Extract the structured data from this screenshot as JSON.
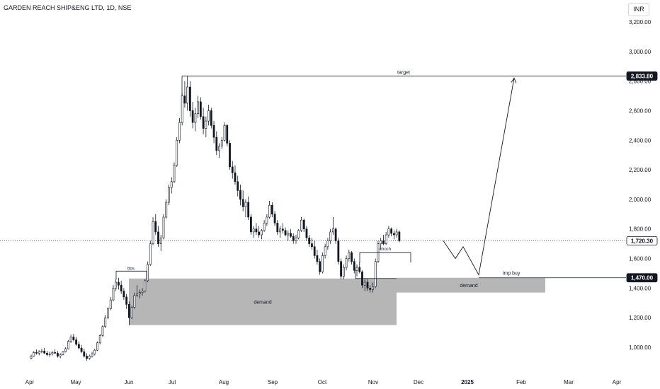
{
  "header": {
    "symbol_title": "GARDEN REACH SHIP&ENG LTD, 1D, NSE",
    "currency": "INR"
  },
  "chart_data": {
    "type": "candlestick",
    "title": "GARDEN REACH SHIP&ENG LTD, 1D, NSE",
    "x_axis_ticks": [
      "Apr",
      "May",
      "Jun",
      "Jul",
      "Aug",
      "Sep",
      "Oct",
      "Nov",
      "Dec",
      "2025",
      "Feb",
      "Mar",
      "Apr"
    ],
    "y_axis_ticks": [
      "1,000.00",
      "1,200.00",
      "1,400.00",
      "1,600.00",
      "1,800.00",
      "2,000.00",
      "2,200.00",
      "2,400.00",
      "2,600.00",
      "2,800.00",
      "3,000.00",
      "3,200.00"
    ],
    "ylim": [
      910,
      3250
    ],
    "price_labels": [
      {
        "value": 2833.8,
        "text": "2,833.80",
        "style": "dark"
      },
      {
        "value": 1720.3,
        "text": "1,720.30",
        "style": "outline"
      },
      {
        "value": 1470.0,
        "text": "1,470.00",
        "style": "dark"
      }
    ],
    "current_price": 1720.3,
    "annotations": [
      {
        "name": "target-line",
        "type": "hline",
        "y": 2833.8,
        "label": "target"
      },
      {
        "name": "imp-buy-line",
        "type": "hline",
        "y": 1470.0,
        "label": "Imp buy"
      },
      {
        "name": "demand-zone-1",
        "type": "box",
        "y_low": 1150,
        "y_high": 1465,
        "label": "demand"
      },
      {
        "name": "demand-zone-2",
        "type": "box",
        "y_low": 1370,
        "y_high": 1470,
        "label": "demand"
      },
      {
        "name": "bos-mark",
        "type": "bracket",
        "y": 1515,
        "label": "bos"
      },
      {
        "name": "choch-mark",
        "type": "bracket",
        "y": 1640,
        "label": "choch"
      },
      {
        "name": "x-mark",
        "type": "text",
        "y": 1440,
        "label": "x"
      }
    ],
    "projection": [
      1720,
      1600,
      1680,
      1490,
      2820
    ],
    "series": [
      {
        "name": "price",
        "ohlc": [
          [
            924,
            950,
            918,
            940
          ],
          [
            940,
            975,
            935,
            965
          ],
          [
            965,
            985,
            950,
            960
          ],
          [
            960,
            980,
            945,
            970
          ],
          [
            970,
            990,
            960,
            975
          ],
          [
            975,
            995,
            955,
            960
          ],
          [
            960,
            975,
            940,
            950
          ],
          [
            950,
            970,
            935,
            955
          ],
          [
            955,
            975,
            945,
            965
          ],
          [
            965,
            985,
            955,
            960
          ],
          [
            960,
            975,
            930,
            940
          ],
          [
            940,
            960,
            925,
            950
          ],
          [
            950,
            975,
            945,
            970
          ],
          [
            970,
            1000,
            965,
            990
          ],
          [
            990,
            1050,
            985,
            1040
          ],
          [
            1040,
            1085,
            1030,
            1070
          ],
          [
            1070,
            1090,
            1040,
            1050
          ],
          [
            1050,
            1070,
            1010,
            1020
          ],
          [
            1020,
            1040,
            985,
            995
          ],
          [
            995,
            1015,
            960,
            970
          ],
          [
            970,
            990,
            930,
            940
          ],
          [
            940,
            960,
            910,
            925
          ],
          [
            925,
            950,
            915,
            940
          ],
          [
            940,
            970,
            930,
            955
          ],
          [
            955,
            990,
            945,
            980
          ],
          [
            980,
            1040,
            975,
            1030
          ],
          [
            1030,
            1090,
            1020,
            1080
          ],
          [
            1080,
            1150,
            1070,
            1140
          ],
          [
            1140,
            1220,
            1130,
            1200
          ],
          [
            1200,
            1270,
            1190,
            1260
          ],
          [
            1260,
            1340,
            1250,
            1320
          ],
          [
            1320,
            1420,
            1310,
            1400
          ],
          [
            1400,
            1460,
            1380,
            1440
          ],
          [
            1440,
            1470,
            1390,
            1420
          ],
          [
            1420,
            1450,
            1360,
            1380
          ],
          [
            1380,
            1400,
            1320,
            1340
          ],
          [
            1340,
            1360,
            1260,
            1290
          ],
          [
            1290,
            1310,
            1150,
            1200
          ],
          [
            1200,
            1280,
            1190,
            1270
          ],
          [
            1270,
            1370,
            1260,
            1350
          ],
          [
            1350,
            1420,
            1340,
            1360
          ],
          [
            1360,
            1390,
            1330,
            1370
          ],
          [
            1370,
            1400,
            1350,
            1380
          ],
          [
            1380,
            1460,
            1370,
            1450
          ],
          [
            1450,
            1580,
            1440,
            1560
          ],
          [
            1560,
            1720,
            1550,
            1700
          ],
          [
            1700,
            1880,
            1690,
            1850
          ],
          [
            1850,
            1900,
            1760,
            1780
          ],
          [
            1780,
            1820,
            1680,
            1700
          ],
          [
            1700,
            1760,
            1650,
            1740
          ],
          [
            1740,
            1900,
            1730,
            1880
          ],
          [
            1880,
            2000,
            1870,
            1980
          ],
          [
            1980,
            2100,
            1960,
            2080
          ],
          [
            2080,
            2150,
            2040,
            2120
          ],
          [
            2120,
            2250,
            2110,
            2230
          ],
          [
            2230,
            2420,
            2220,
            2400
          ],
          [
            2400,
            2550,
            2380,
            2520
          ],
          [
            2520,
            2720,
            2500,
            2700
          ],
          [
            2700,
            2800,
            2620,
            2650
          ],
          [
            2650,
            2834,
            2600,
            2760
          ],
          [
            2760,
            2800,
            2560,
            2600
          ],
          [
            2600,
            2660,
            2480,
            2520
          ],
          [
            2520,
            2620,
            2460,
            2580
          ],
          [
            2580,
            2700,
            2550,
            2660
          ],
          [
            2660,
            2690,
            2540,
            2560
          ],
          [
            2560,
            2620,
            2440,
            2480
          ],
          [
            2480,
            2560,
            2420,
            2530
          ],
          [
            2530,
            2640,
            2500,
            2600
          ],
          [
            2600,
            2620,
            2480,
            2500
          ],
          [
            2500,
            2530,
            2380,
            2420
          ],
          [
            2420,
            2460,
            2300,
            2330
          ],
          [
            2330,
            2380,
            2280,
            2360
          ],
          [
            2360,
            2420,
            2340,
            2400
          ],
          [
            2400,
            2520,
            2390,
            2500
          ],
          [
            2500,
            2510,
            2360,
            2380
          ],
          [
            2380,
            2400,
            2200,
            2220
          ],
          [
            2220,
            2260,
            2140,
            2180
          ],
          [
            2180,
            2230,
            2100,
            2120
          ],
          [
            2120,
            2160,
            2020,
            2060
          ],
          [
            2060,
            2100,
            1960,
            2000
          ],
          [
            2000,
            2060,
            1920,
            1950
          ],
          [
            1950,
            2000,
            1880,
            1980
          ],
          [
            1980,
            2020,
            1860,
            1880
          ],
          [
            1880,
            1900,
            1760,
            1780
          ],
          [
            1780,
            1820,
            1740,
            1800
          ],
          [
            1800,
            1840,
            1760,
            1780
          ],
          [
            1780,
            1820,
            1740,
            1760
          ],
          [
            1760,
            1800,
            1730,
            1790
          ],
          [
            1790,
            1860,
            1780,
            1840
          ],
          [
            1840,
            1900,
            1820,
            1880
          ],
          [
            1880,
            1990,
            1870,
            1960
          ],
          [
            1960,
            1980,
            1880,
            1900
          ],
          [
            1900,
            1920,
            1820,
            1840
          ],
          [
            1840,
            1860,
            1760,
            1780
          ],
          [
            1780,
            1820,
            1740,
            1800
          ],
          [
            1800,
            1840,
            1770,
            1790
          ],
          [
            1790,
            1810,
            1750,
            1760
          ],
          [
            1760,
            1790,
            1720,
            1770
          ],
          [
            1770,
            1800,
            1740,
            1750
          ],
          [
            1750,
            1770,
            1700,
            1720
          ],
          [
            1720,
            1760,
            1700,
            1740
          ],
          [
            1740,
            1800,
            1730,
            1790
          ],
          [
            1790,
            1880,
            1780,
            1860
          ],
          [
            1860,
            1870,
            1780,
            1800
          ],
          [
            1800,
            1820,
            1720,
            1740
          ],
          [
            1740,
            1760,
            1680,
            1700
          ],
          [
            1700,
            1740,
            1660,
            1680
          ],
          [
            1680,
            1720,
            1600,
            1620
          ],
          [
            1620,
            1660,
            1560,
            1580
          ],
          [
            1580,
            1600,
            1490,
            1510
          ],
          [
            1510,
            1640,
            1500,
            1620
          ],
          [
            1620,
            1700,
            1600,
            1680
          ],
          [
            1680,
            1740,
            1660,
            1720
          ],
          [
            1720,
            1800,
            1700,
            1780
          ],
          [
            1780,
            1880,
            1760,
            1800
          ],
          [
            1800,
            1810,
            1700,
            1720
          ],
          [
            1720,
            1740,
            1560,
            1580
          ],
          [
            1580,
            1600,
            1460,
            1480
          ],
          [
            1480,
            1560,
            1460,
            1540
          ],
          [
            1540,
            1620,
            1520,
            1600
          ],
          [
            1600,
            1660,
            1580,
            1640
          ],
          [
            1640,
            1650,
            1560,
            1580
          ],
          [
            1580,
            1600,
            1500,
            1520
          ],
          [
            1520,
            1560,
            1480,
            1540
          ],
          [
            1540,
            1580,
            1500,
            1510
          ],
          [
            1510,
            1520,
            1400,
            1420
          ],
          [
            1420,
            1460,
            1380,
            1440
          ],
          [
            1440,
            1460,
            1380,
            1400
          ],
          [
            1400,
            1420,
            1370,
            1390
          ],
          [
            1390,
            1420,
            1370,
            1410
          ],
          [
            1410,
            1600,
            1400,
            1580
          ],
          [
            1580,
            1720,
            1570,
            1700
          ],
          [
            1700,
            1740,
            1660,
            1720
          ],
          [
            1720,
            1760,
            1690,
            1700
          ],
          [
            1700,
            1780,
            1690,
            1760
          ],
          [
            1760,
            1820,
            1740,
            1800
          ],
          [
            1800,
            1810,
            1750,
            1770
          ],
          [
            1770,
            1790,
            1730,
            1760
          ],
          [
            1760,
            1800,
            1740,
            1780
          ],
          [
            1780,
            1790,
            1710,
            1720
          ]
        ]
      }
    ]
  }
}
